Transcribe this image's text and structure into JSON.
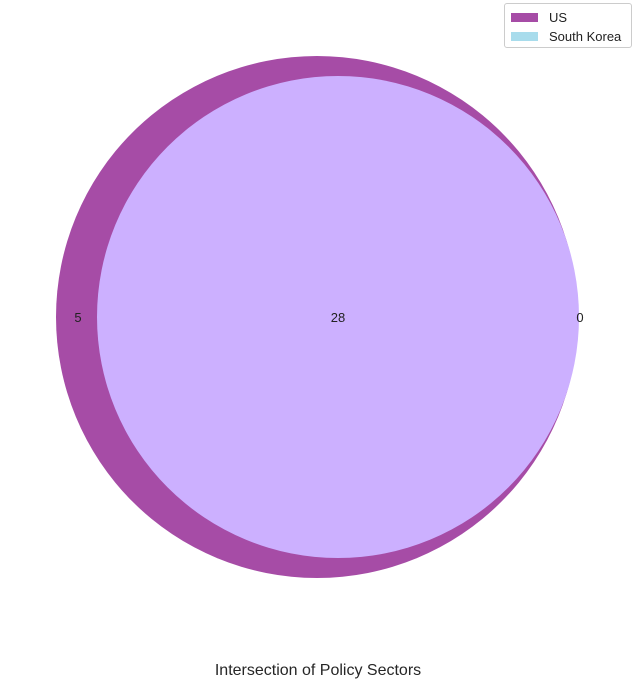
{
  "chart_data": {
    "type": "venn",
    "title": "Intersection of Policy Sectors",
    "sets": [
      {
        "name": "US",
        "color": "#a64ca6"
      },
      {
        "name": "South Korea",
        "color": "#a8dcec"
      }
    ],
    "regions": {
      "us_only": "5",
      "both": "28",
      "south_korea_only": "0"
    },
    "colors": {
      "us_region": "#a64ca6",
      "intersection": "#ccb0ff"
    },
    "legend_position": "top-right"
  }
}
